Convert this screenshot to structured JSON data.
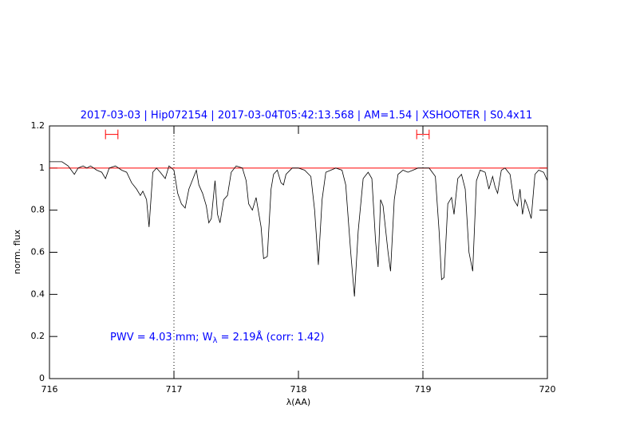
{
  "chart_data": {
    "type": "line",
    "title": "2017-03-03 | Hip072154 | 2017-03-04T05:42:13.568 | AM=1.54 | XSHOOTER | S0.4x11",
    "xlabel": "λ(AA)",
    "ylabel": "norm. flux",
    "annotation": {
      "prefix": "PWV = 4.03 mm; W",
      "subscript": "λ",
      "suffix": " = 2.19Å (corr: 1.42)"
    },
    "xlim": [
      716,
      720
    ],
    "xticks": [
      716,
      717,
      718,
      719,
      720
    ],
    "ylim": [
      0,
      1.2
    ],
    "yticks": [
      0,
      0.2,
      0.4,
      0.6,
      0.8,
      1,
      1.2
    ],
    "color": "#000000",
    "continuum": {
      "value": 1,
      "color": "#ff0000"
    },
    "vlines": [
      717,
      719
    ],
    "ranges": {
      "y": 1.16,
      "color": "#ff0000",
      "spans": [
        [
          716.45,
          716.55
        ],
        [
          718.95,
          719.05
        ]
      ]
    },
    "x": [
      716.0,
      716.1,
      716.15,
      716.2,
      716.23,
      716.27,
      716.3,
      716.33,
      716.38,
      716.42,
      716.45,
      716.48,
      716.53,
      716.58,
      716.62,
      716.66,
      716.7,
      716.73,
      716.75,
      716.78,
      716.8,
      716.83,
      716.86,
      716.89,
      716.93,
      716.96,
      717.0,
      717.03,
      717.06,
      717.09,
      717.12,
      717.16,
      717.18,
      717.2,
      717.23,
      717.26,
      717.28,
      717.3,
      717.33,
      717.35,
      717.37,
      717.4,
      717.43,
      717.46,
      717.5,
      717.55,
      717.58,
      717.6,
      717.63,
      717.66,
      717.7,
      717.72,
      717.75,
      717.78,
      717.8,
      717.83,
      717.86,
      717.88,
      717.9,
      717.95,
      718.0,
      718.05,
      718.1,
      718.13,
      718.16,
      718.19,
      718.22,
      718.26,
      718.3,
      718.35,
      718.38,
      718.42,
      718.45,
      718.48,
      718.52,
      718.56,
      718.59,
      718.62,
      718.64,
      718.66,
      718.68,
      718.72,
      718.74,
      718.77,
      718.8,
      718.84,
      718.88,
      718.92,
      718.96,
      719.0,
      719.05,
      719.1,
      719.13,
      719.15,
      719.17,
      719.2,
      719.23,
      719.25,
      719.28,
      719.31,
      719.34,
      719.37,
      719.4,
      719.43,
      719.46,
      719.5,
      719.53,
      719.56,
      719.58,
      719.6,
      719.63,
      719.66,
      719.7,
      719.73,
      719.76,
      719.78,
      719.8,
      719.82,
      719.84,
      719.87,
      719.9,
      719.93,
      719.97,
      720.0
    ],
    "values": [
      1.03,
      1.03,
      1.01,
      0.97,
      1.0,
      1.01,
      1.0,
      1.01,
      0.99,
      0.98,
      0.95,
      1.0,
      1.01,
      0.99,
      0.98,
      0.93,
      0.9,
      0.87,
      0.89,
      0.85,
      0.72,
      0.98,
      1.0,
      0.98,
      0.95,
      1.01,
      0.99,
      0.88,
      0.83,
      0.81,
      0.9,
      0.96,
      0.99,
      0.92,
      0.88,
      0.82,
      0.74,
      0.76,
      0.94,
      0.78,
      0.74,
      0.85,
      0.87,
      0.98,
      1.01,
      1.0,
      0.94,
      0.83,
      0.8,
      0.86,
      0.72,
      0.57,
      0.58,
      0.9,
      0.97,
      0.99,
      0.93,
      0.92,
      0.97,
      1.0,
      1.0,
      0.99,
      0.96,
      0.8,
      0.54,
      0.85,
      0.98,
      0.99,
      1.0,
      0.99,
      0.92,
      0.6,
      0.39,
      0.7,
      0.95,
      0.98,
      0.95,
      0.65,
      0.53,
      0.85,
      0.82,
      0.6,
      0.51,
      0.85,
      0.97,
      0.99,
      0.98,
      0.99,
      1.0,
      1.0,
      1.0,
      0.96,
      0.7,
      0.47,
      0.48,
      0.83,
      0.86,
      0.78,
      0.95,
      0.97,
      0.9,
      0.6,
      0.51,
      0.94,
      0.99,
      0.98,
      0.9,
      0.96,
      0.91,
      0.88,
      0.99,
      1.0,
      0.97,
      0.85,
      0.82,
      0.9,
      0.78,
      0.85,
      0.82,
      0.76,
      0.97,
      0.99,
      0.98,
      0.94
    ]
  }
}
